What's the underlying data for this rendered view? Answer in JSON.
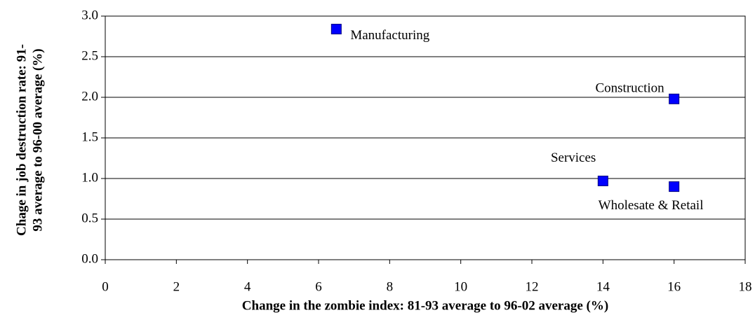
{
  "chart_data": {
    "type": "scatter",
    "x_label": "Change in the zombie index: 81-93 average to 96-02 average (%)",
    "y_label": [
      "Chage in job destruction rate: 91-",
      "93 average to 96-00 average (%)"
    ],
    "series": [
      {
        "color": "#0000ff",
        "x": [
          6.5,
          16,
          14,
          16
        ],
        "values": [
          2.84,
          1.98,
          0.97,
          0.9
        ],
        "point_labels": [
          "Manufacturing",
          "Construction",
          "Services",
          "Wholesate & Retail"
        ]
      }
    ],
    "xlim": [
      0,
      18
    ],
    "xticks": [
      0,
      2,
      4,
      6,
      8,
      10,
      12,
      14,
      16,
      18
    ],
    "ylim": [
      0,
      3
    ],
    "yticks": [
      {
        "value": 0,
        "label": "0.0"
      },
      {
        "value": 0.5,
        "label": "0.5"
      },
      {
        "value": 1,
        "label": "1.0"
      },
      {
        "value": 1.5,
        "label": "1.5"
      },
      {
        "value": 2,
        "label": "2.0"
      },
      {
        "value": 2.5,
        "label": "2.5"
      },
      {
        "value": 3,
        "label": "3.0"
      }
    ],
    "grid": true
  }
}
